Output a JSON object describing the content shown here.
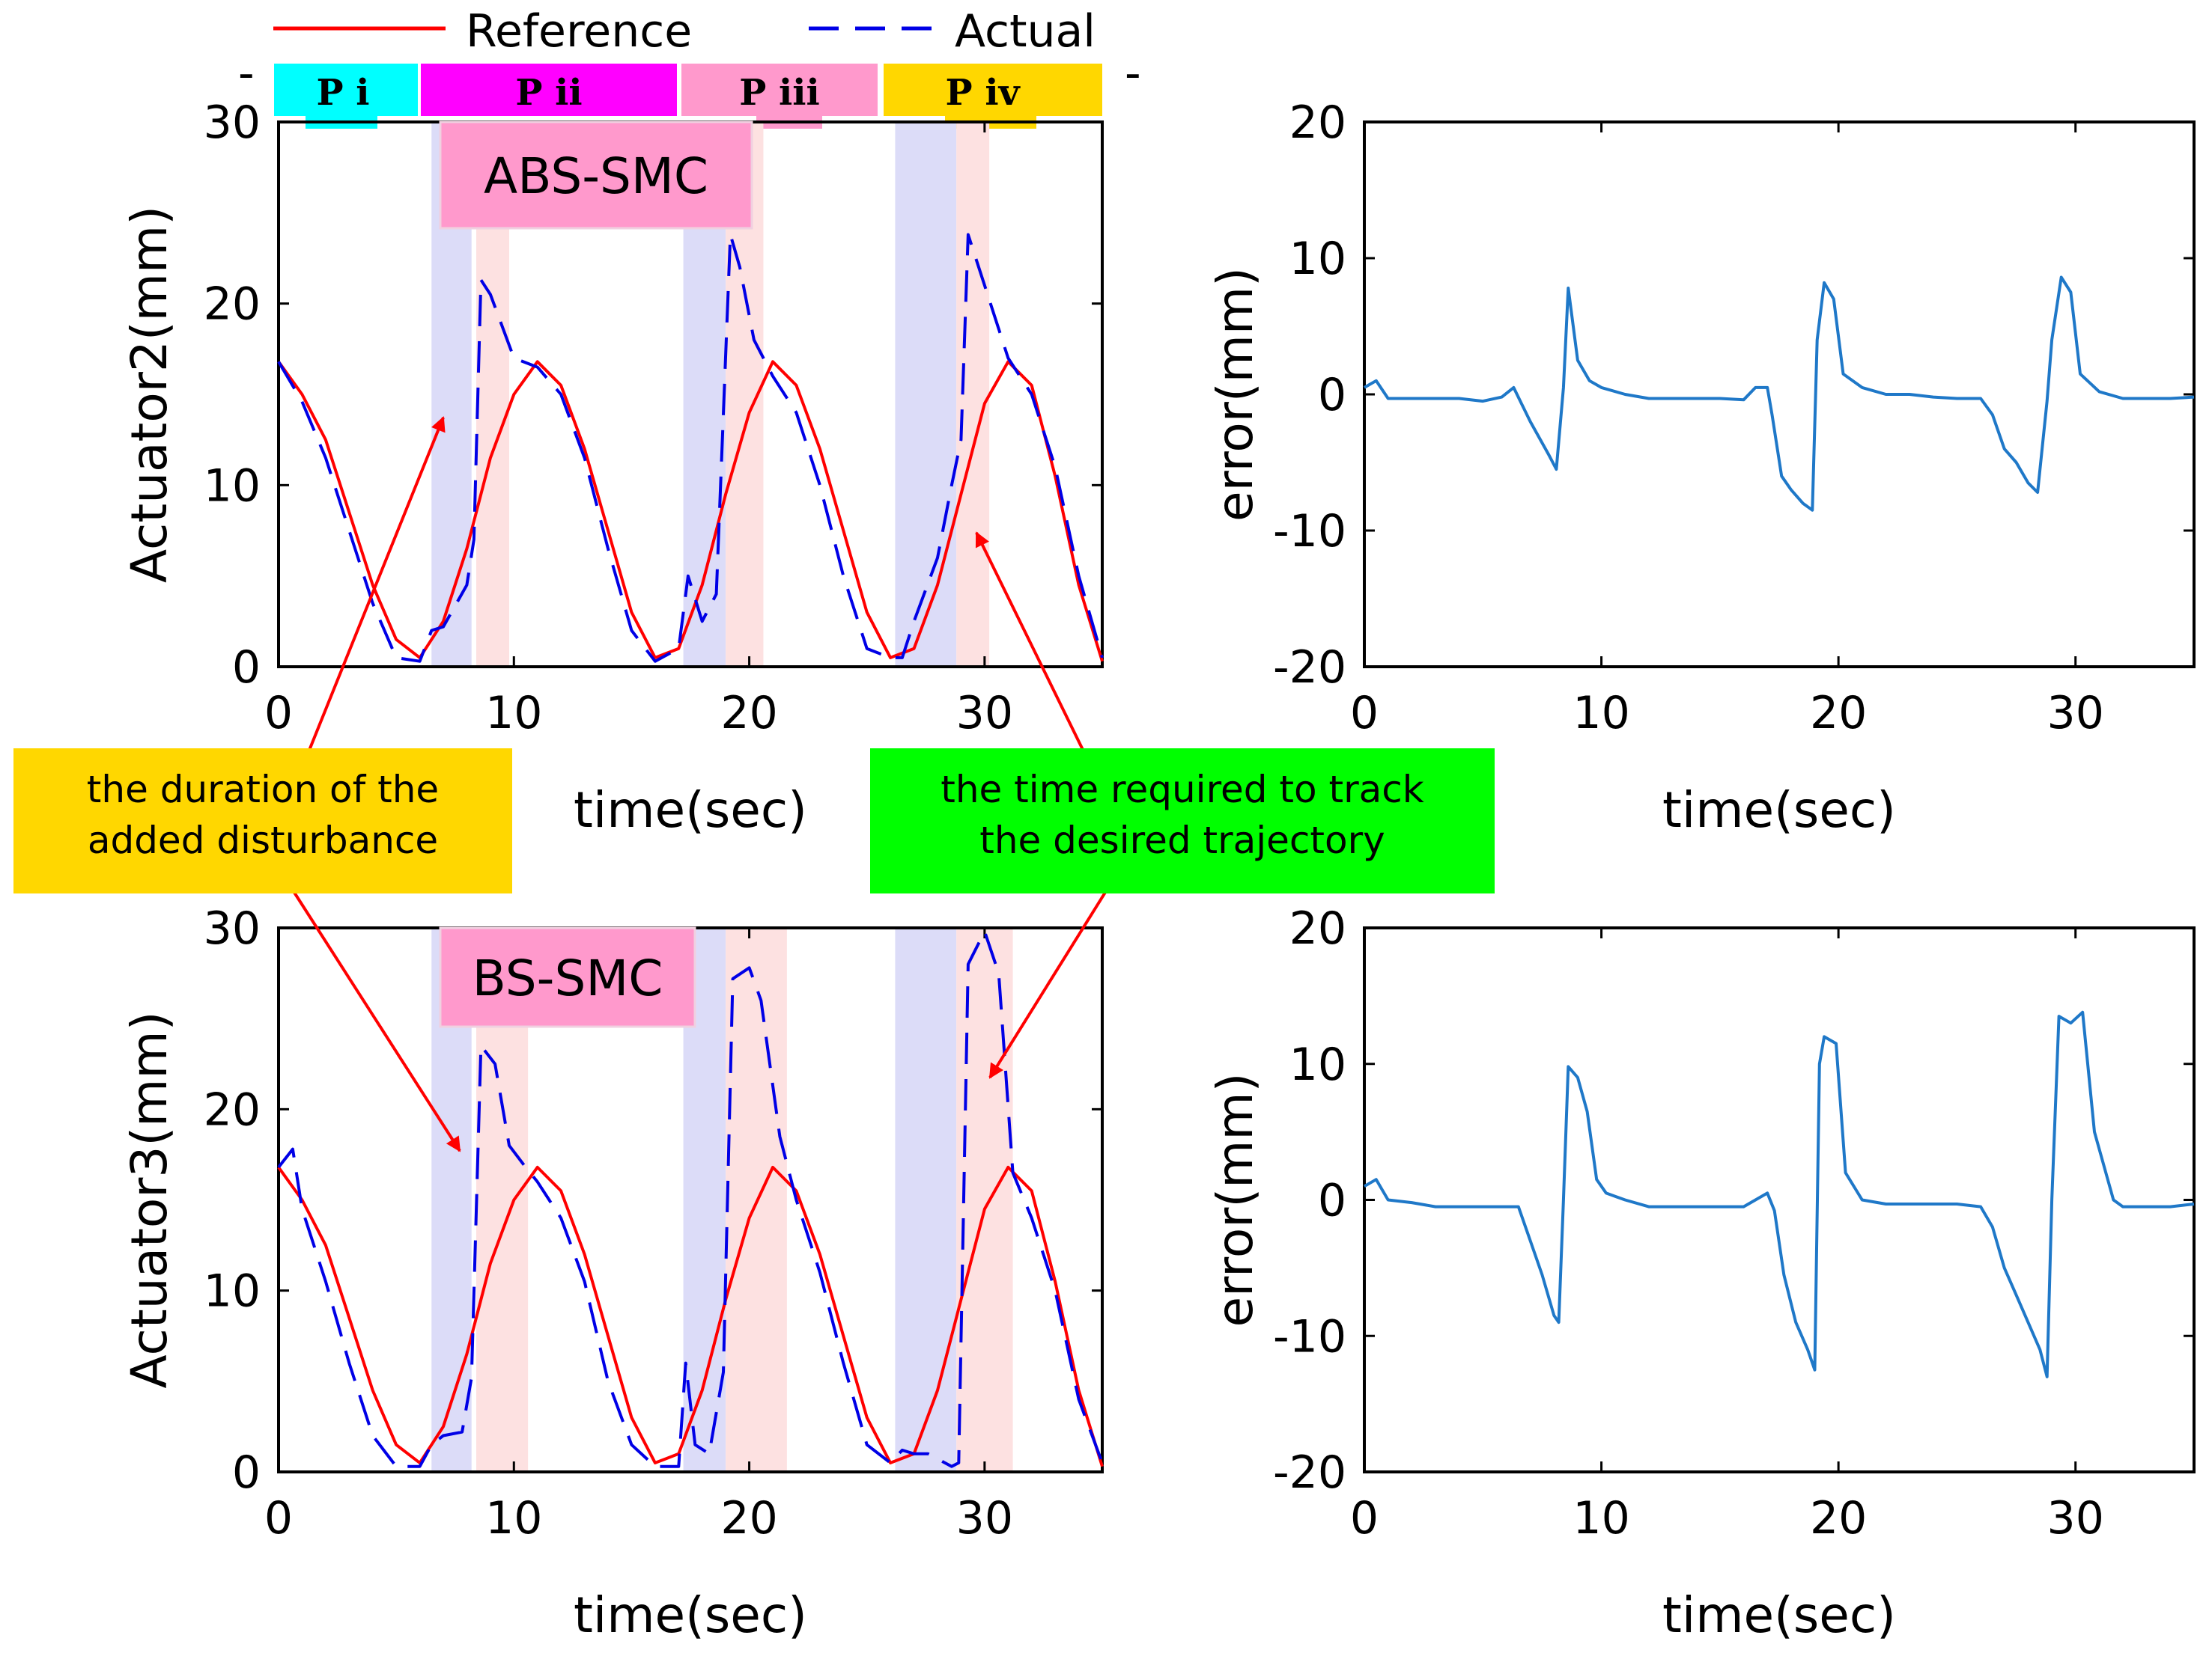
{
  "legend": {
    "reference": "Reference",
    "actual": "Actual"
  },
  "colors": {
    "reference": "#ff0000",
    "actual": "#0000e6",
    "error": "#1f78c8",
    "disturbance_band": "#dcdcf8",
    "tracking_band": "#fde1e1",
    "phase_i": "#00ffff",
    "phase_ii": "#ff00ff",
    "phase_iii": "#ff99cc",
    "phase_iv": "#ffd700",
    "note_disturbance": "#ffd700",
    "note_tracking": "#00ff00",
    "controller_label": "#ff99cc"
  },
  "phases": [
    {
      "label": "P i",
      "color": "#00ffff"
    },
    {
      "label": "P ii",
      "color": "#ff00ff"
    },
    {
      "label": "P iii",
      "color": "#ff99cc"
    },
    {
      "label": "P iv",
      "color": "#ffd700"
    }
  ],
  "annotations": {
    "disturbance": [
      "the duration of the",
      "added disturbance"
    ],
    "tracking": [
      "the time required to track",
      "the desired trajectory"
    ]
  },
  "chart_data": [
    {
      "type": "line",
      "panel": "top-left",
      "controller_label": "ABS-SMC",
      "xlabel": "time(sec)",
      "ylabel": "Actuator2(mm)",
      "xlim": [
        0,
        35
      ],
      "ylim": [
        0,
        30
      ],
      "xticks": [
        0,
        10,
        20,
        30
      ],
      "yticks": [
        0,
        10,
        20,
        30
      ],
      "disturbance_windows": [
        [
          6.5,
          8.2
        ],
        [
          17.2,
          19.0
        ],
        [
          26.2,
          28.8
        ]
      ],
      "tracking_windows": [
        [
          8.4,
          9.8
        ],
        [
          19.0,
          20.6
        ],
        [
          28.8,
          30.2
        ]
      ],
      "series": [
        {
          "name": "Reference",
          "style": "solid",
          "x": [
            0,
            1,
            2,
            3,
            4,
            5,
            6,
            7,
            8,
            9,
            10,
            11,
            12,
            13,
            14,
            15,
            16,
            17,
            18,
            19,
            20,
            21,
            22,
            23,
            24,
            25,
            26,
            27,
            28,
            29,
            30,
            31,
            32,
            33,
            34,
            35
          ],
          "y": [
            16.8,
            15.0,
            12.5,
            8.5,
            4.5,
            1.5,
            0.5,
            2.5,
            6.5,
            11.5,
            15.0,
            16.8,
            15.5,
            12.0,
            7.5,
            3.0,
            0.5,
            1.0,
            4.5,
            9.5,
            14.0,
            16.8,
            15.5,
            12.0,
            7.5,
            3.0,
            0.5,
            1.0,
            4.5,
            9.5,
            14.5,
            16.8,
            15.5,
            10.5,
            4.5,
            0.3
          ]
        },
        {
          "name": "Actual",
          "style": "dashed",
          "x": [
            0,
            1,
            2,
            3,
            4,
            5,
            6,
            6.5,
            7,
            8,
            8.3,
            8.6,
            9,
            10,
            11,
            12,
            13,
            14,
            15,
            16,
            17,
            17.4,
            18,
            18.6,
            19.2,
            19.6,
            20.2,
            21,
            22,
            23,
            24,
            25,
            26,
            26.5,
            27,
            28,
            28.6,
            29,
            29.3,
            30,
            31,
            32,
            33,
            34,
            35
          ],
          "y": [
            16.8,
            14.6,
            11.5,
            7.5,
            3.5,
            0.5,
            0.3,
            2.0,
            2.2,
            4.5,
            7.0,
            21.3,
            20.5,
            17.0,
            16.5,
            15.0,
            11.5,
            6.5,
            2.0,
            0.3,
            1.0,
            5.0,
            2.5,
            4.0,
            23.8,
            22.0,
            18.0,
            16.0,
            14.0,
            10.0,
            5.0,
            1.0,
            0.5,
            0.5,
            2.5,
            6.0,
            10.0,
            12.5,
            23.8,
            21.0,
            17.0,
            15.0,
            11.0,
            5.0,
            0.5
          ]
        }
      ]
    },
    {
      "type": "line",
      "panel": "top-right",
      "xlabel": "time(sec)",
      "ylabel": "error(mm)",
      "xlim": [
        0,
        35
      ],
      "ylim": [
        -20,
        20
      ],
      "xticks": [
        0,
        10,
        20,
        30
      ],
      "yticks": [
        -20,
        -10,
        0,
        10,
        20
      ],
      "series": [
        {
          "name": "",
          "x": [
            0,
            0.5,
            1,
            2,
            3,
            4,
            5,
            5.8,
            6.3,
            7,
            7.8,
            8.1,
            8.4,
            8.6,
            9,
            9.5,
            10,
            11,
            12,
            13,
            14,
            15,
            16,
            16.5,
            17,
            17.2,
            17.6,
            18,
            18.5,
            18.9,
            19.1,
            19.4,
            19.8,
            20.2,
            21,
            22,
            23,
            24,
            25,
            26,
            26.5,
            27,
            27.5,
            28,
            28.4,
            28.8,
            29,
            29.4,
            29.8,
            30.2,
            31,
            32,
            33,
            34,
            35
          ],
          "y": [
            0.5,
            1.0,
            -0.3,
            -0.3,
            -0.3,
            -0.3,
            -0.5,
            -0.2,
            0.5,
            -2.0,
            -4.5,
            -5.5,
            0.5,
            7.8,
            2.5,
            1.0,
            0.5,
            0.0,
            -0.3,
            -0.3,
            -0.3,
            -0.3,
            -0.4,
            0.5,
            0.5,
            -1.5,
            -6.0,
            -7.0,
            -8.0,
            -8.5,
            4.0,
            8.2,
            7.0,
            1.5,
            0.5,
            0.0,
            0.0,
            -0.2,
            -0.3,
            -0.3,
            -1.5,
            -4.0,
            -5.0,
            -6.5,
            -7.2,
            -0.5,
            4.0,
            8.6,
            7.5,
            1.5,
            0.2,
            -0.3,
            -0.3,
            -0.3,
            -0.2
          ]
        }
      ]
    },
    {
      "type": "line",
      "panel": "bottom-left",
      "controller_label": "BS-SMC",
      "xlabel": "time(sec)",
      "ylabel": "Actuator3(mm)",
      "xlim": [
        0,
        35
      ],
      "ylim": [
        0,
        30
      ],
      "xticks": [
        0,
        10,
        20,
        30
      ],
      "yticks": [
        0,
        10,
        20,
        30
      ],
      "disturbance_windows": [
        [
          6.5,
          8.2
        ],
        [
          17.2,
          19.0
        ],
        [
          26.2,
          28.8
        ]
      ],
      "tracking_windows": [
        [
          8.4,
          10.6
        ],
        [
          19.0,
          21.6
        ],
        [
          28.8,
          31.2
        ]
      ],
      "series": [
        {
          "name": "Reference",
          "style": "solid",
          "x": [
            0,
            1,
            2,
            3,
            4,
            5,
            6,
            7,
            8,
            9,
            10,
            11,
            12,
            13,
            14,
            15,
            16,
            17,
            18,
            19,
            20,
            21,
            22,
            23,
            24,
            25,
            26,
            27,
            28,
            29,
            30,
            31,
            32,
            33,
            34,
            35
          ],
          "y": [
            16.8,
            15.0,
            12.5,
            8.5,
            4.5,
            1.5,
            0.5,
            2.5,
            6.5,
            11.5,
            15.0,
            16.8,
            15.5,
            12.0,
            7.5,
            3.0,
            0.5,
            1.0,
            4.5,
            9.5,
            14.0,
            16.8,
            15.5,
            12.0,
            7.5,
            3.0,
            0.5,
            1.0,
            4.5,
            9.5,
            14.5,
            16.8,
            15.5,
            10.5,
            4.5,
            0.3
          ]
        },
        {
          "name": "Actual",
          "style": "dashed",
          "x": [
            0,
            0.6,
            1,
            2,
            3,
            4,
            5,
            6,
            6.5,
            7,
            7.8,
            8.2,
            8.6,
            9.2,
            9.8,
            10.5,
            11,
            12,
            13,
            14,
            15,
            16,
            17,
            17.3,
            17.7,
            18.3,
            18.9,
            19.3,
            20,
            20.5,
            21.3,
            22,
            23,
            24,
            25,
            26,
            26.5,
            27,
            27.6,
            28.6,
            28.9,
            29.3,
            30,
            30.6,
            31.2,
            32,
            33,
            34,
            35
          ],
          "y": [
            16.8,
            17.8,
            14.5,
            10.5,
            6.0,
            2.0,
            0.3,
            0.3,
            1.5,
            2.0,
            2.2,
            5.2,
            23.5,
            22.5,
            18.0,
            16.8,
            16.0,
            14.0,
            10.5,
            5.0,
            1.5,
            0.3,
            0.3,
            6.0,
            1.5,
            1.0,
            5.5,
            27.2,
            27.8,
            26.0,
            18.5,
            15.0,
            11.0,
            6.0,
            1.5,
            0.5,
            1.2,
            1.0,
            1.0,
            0.3,
            0.5,
            28.0,
            29.8,
            27.5,
            16.5,
            14.0,
            10.0,
            4.0,
            0.5
          ]
        }
      ]
    },
    {
      "type": "line",
      "panel": "bottom-right",
      "xlabel": "time(sec)",
      "ylabel": "error(mm)",
      "xlim": [
        0,
        35
      ],
      "ylim": [
        -20,
        20
      ],
      "xticks": [
        0,
        10,
        20,
        30
      ],
      "yticks": [
        -20,
        -10,
        0,
        10,
        20
      ],
      "series": [
        {
          "name": "",
          "x": [
            0,
            0.5,
            1,
            2,
            3,
            4,
            5,
            6,
            6.5,
            7,
            7.5,
            8,
            8.2,
            8.4,
            8.6,
            9,
            9.4,
            9.8,
            10.2,
            11,
            12,
            13,
            14,
            15,
            16,
            17,
            17.3,
            17.7,
            18.2,
            18.7,
            19.0,
            19.2,
            19.4,
            19.9,
            20.3,
            21,
            22,
            23,
            24,
            25,
            26,
            26.5,
            27,
            27.5,
            28,
            28.5,
            28.8,
            29.0,
            29.3,
            29.8,
            30.3,
            30.8,
            31.6,
            32,
            33,
            34,
            35
          ],
          "y": [
            1.0,
            1.5,
            0.0,
            -0.2,
            -0.5,
            -0.5,
            -0.5,
            -0.5,
            -0.5,
            -3.0,
            -5.5,
            -8.5,
            -9.0,
            0.0,
            9.8,
            9.0,
            6.5,
            1.5,
            0.5,
            0.0,
            -0.5,
            -0.5,
            -0.5,
            -0.5,
            -0.5,
            0.5,
            -0.8,
            -5.5,
            -9.0,
            -11.0,
            -12.5,
            10.0,
            12.0,
            11.5,
            2.0,
            0.0,
            -0.3,
            -0.3,
            -0.3,
            -0.3,
            -0.5,
            -2.0,
            -5.0,
            -7.0,
            -9.0,
            -11.0,
            -13.0,
            0.0,
            13.5,
            13.0,
            13.8,
            5.0,
            0.0,
            -0.5,
            -0.5,
            -0.5,
            -0.3
          ]
        }
      ]
    }
  ]
}
